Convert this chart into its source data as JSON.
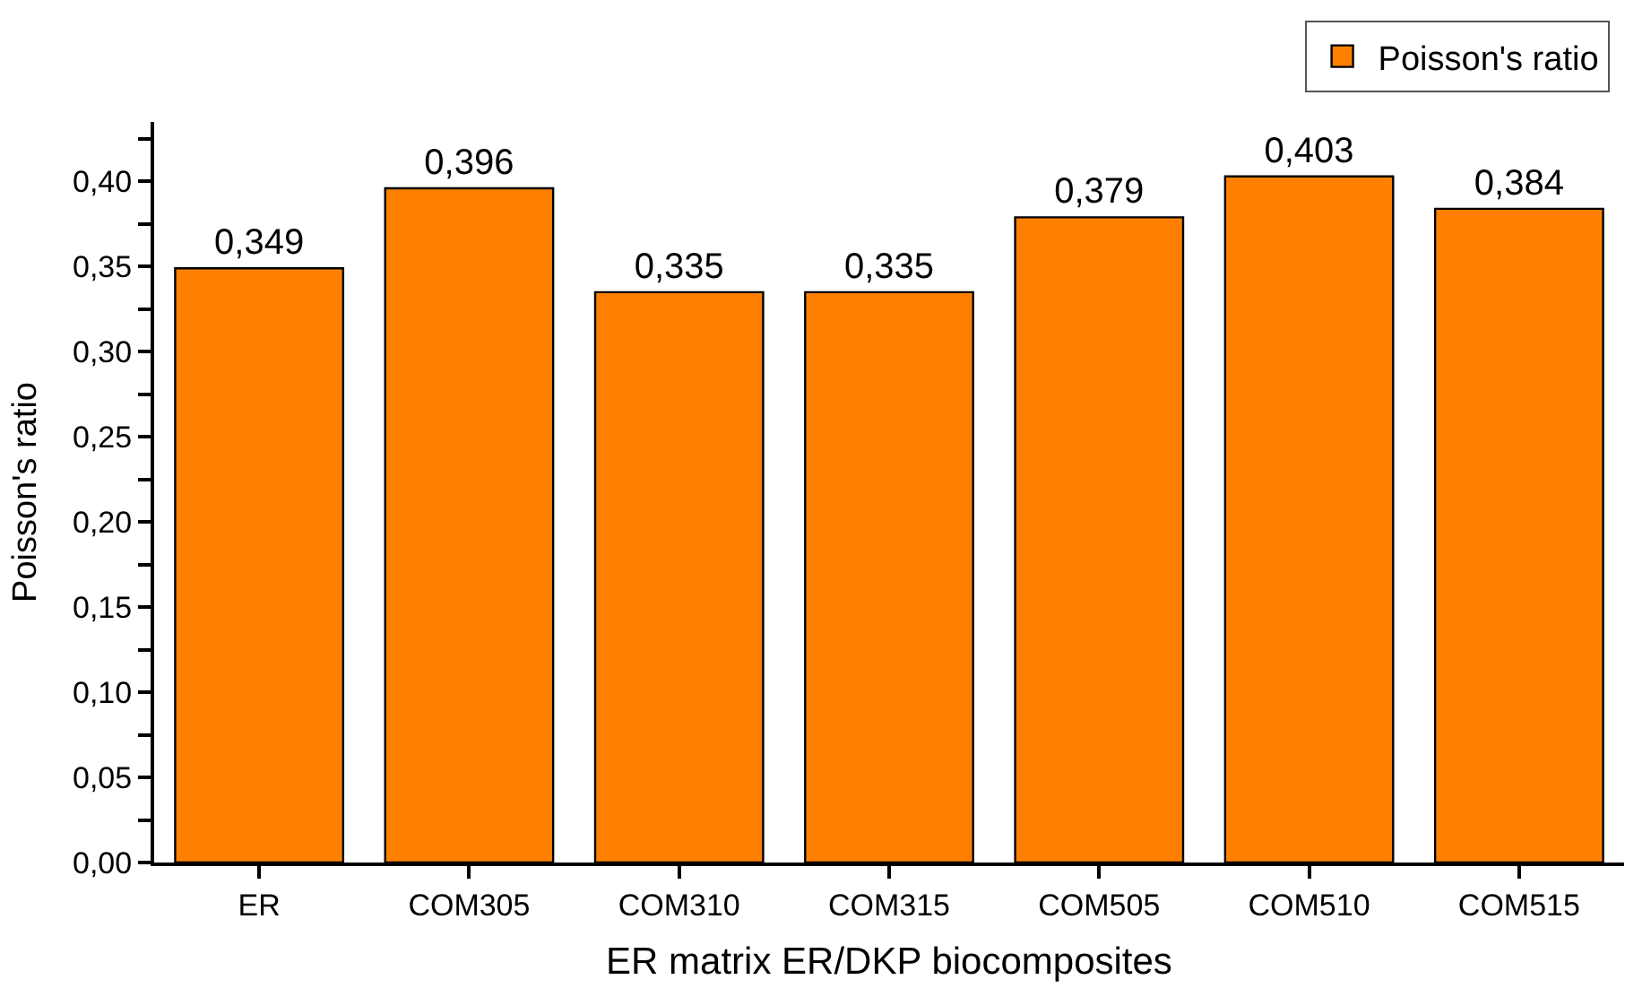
{
  "chart_data": {
    "type": "bar",
    "xlabel": "ER matrix ER/DKP biocomposites",
    "ylabel": "Poisson's ratio",
    "categories": [
      "ER",
      "COM305",
      "COM310",
      "COM315",
      "COM505",
      "COM510",
      "COM515"
    ],
    "series": [
      {
        "name": "Poisson's ratio",
        "color": "#ff8000",
        "values": [
          0.349,
          0.396,
          0.335,
          0.335,
          0.379,
          0.403,
          0.384
        ],
        "value_labels": [
          "0,349",
          "0,396",
          "0,335",
          "0,335",
          "0,379",
          "0,403",
          "0,384"
        ]
      }
    ],
    "ylim": [
      0,
      0.435
    ],
    "yticks": [
      {
        "value": 0,
        "label": "0,00"
      },
      {
        "value": 0.025,
        "label": null
      },
      {
        "value": 0.05,
        "label": "0,05"
      },
      {
        "value": 0.075,
        "label": null
      },
      {
        "value": 0.1,
        "label": "0,10"
      },
      {
        "value": 0.125,
        "label": null
      },
      {
        "value": 0.15,
        "label": "0,15"
      },
      {
        "value": 0.175,
        "label": null
      },
      {
        "value": 0.2,
        "label": "0,20"
      },
      {
        "value": 0.225,
        "label": null
      },
      {
        "value": 0.25,
        "label": "0,25"
      },
      {
        "value": 0.275,
        "label": null
      },
      {
        "value": 0.3,
        "label": "0,30"
      },
      {
        "value": 0.325,
        "label": null
      },
      {
        "value": 0.35,
        "label": "0,35"
      },
      {
        "value": 0.375,
        "label": null
      },
      {
        "value": 0.4,
        "label": "0,40"
      },
      {
        "value": 0.425,
        "label": null
      }
    ],
    "grid": false,
    "legend": "top right"
  }
}
